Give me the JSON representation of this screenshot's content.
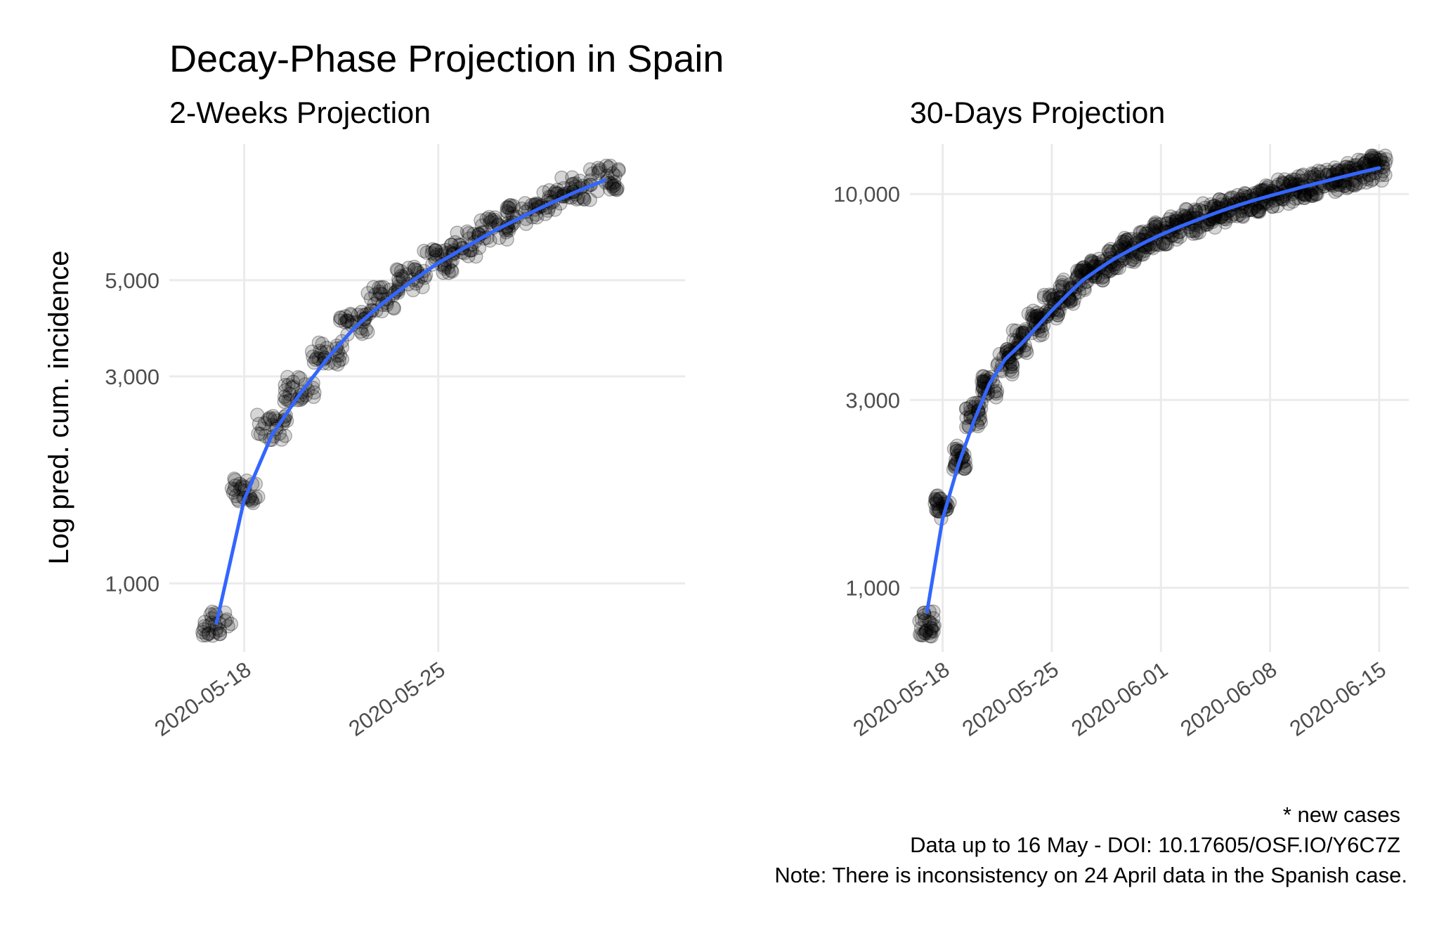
{
  "title": "Decay-Phase Projection in Spain",
  "y_axis_label": "Log pred. cum. incidence",
  "caption": [
    "* new cases",
    "Data up to 16 May - DOI: 10.17605/OSF.IO/Y6C7Z",
    "Note: There is inconsistency on 24 April data in the Spanish case."
  ],
  "colors": {
    "fit_line": "#3366ff",
    "points": "#000000",
    "grid": "#ebebeb"
  },
  "chart_data": [
    {
      "type": "scatter",
      "subtitle": "2-Weeks Projection",
      "x_start": "2020-05-17",
      "xlim_days": [
        -1.7,
        16.9
      ],
      "x_ticks": [
        {
          "label": "2020-05-18",
          "day": 1
        },
        {
          "label": "2020-05-25",
          "day": 8
        }
      ],
      "y_scale": "log",
      "ylim": [
        695,
        10300
      ],
      "y_ticks": [
        {
          "label": "1,000",
          "value": 1000
        },
        {
          "label": "3,000",
          "value": 3000
        },
        {
          "label": "5,000",
          "value": 5000
        }
      ],
      "days": [
        0,
        1,
        2,
        3,
        4,
        5,
        6,
        7,
        8,
        9,
        10,
        11,
        12,
        13,
        14
      ],
      "values": [
        810,
        1630,
        2290,
        2800,
        3380,
        3990,
        4520,
        5030,
        5560,
        6050,
        6560,
        7070,
        7570,
        8090,
        8580
      ],
      "fit": [
        810,
        1560,
        2200,
        2730,
        3300,
        3900,
        4430,
        4950,
        5480,
        5970,
        6490,
        6990,
        7500,
        8010,
        8500
      ]
    },
    {
      "type": "scatter",
      "subtitle": "30-Days Projection",
      "x_start": "2020-05-17",
      "xlim_days": [
        -1.1,
        30.9
      ],
      "x_ticks": [
        {
          "label": "2020-05-18",
          "day": 1
        },
        {
          "label": "2020-05-25",
          "day": 8
        },
        {
          "label": "2020-06-01",
          "day": 15
        },
        {
          "label": "2020-06-08",
          "day": 22
        },
        {
          "label": "2020-06-15",
          "day": 29
        }
      ],
      "y_scale": "log",
      "ylim": [
        687,
        13400
      ],
      "y_ticks": [
        {
          "label": "1,000",
          "value": 1000
        },
        {
          "label": "3,000",
          "value": 3000
        },
        {
          "label": "10,000",
          "value": 10000
        }
      ],
      "days": [
        0,
        1,
        2,
        3,
        4,
        5,
        6,
        7,
        8,
        9,
        10,
        11,
        12,
        13,
        14,
        15,
        16,
        17,
        18,
        19,
        20,
        21,
        22,
        23,
        24,
        25,
        26,
        27,
        28,
        29
      ],
      "values": [
        810,
        1600,
        2150,
        2750,
        3250,
        3750,
        4250,
        4700,
        5200,
        5650,
        6050,
        6450,
        6850,
        7200,
        7550,
        7880,
        8200,
        8500,
        8800,
        9100,
        9380,
        9650,
        9900,
        10150,
        10400,
        10650,
        10900,
        11150,
        11400,
        11650
      ],
      "fit": [
        870,
        1500,
        2050,
        2650,
        3300,
        3800,
        4150,
        4580,
        5060,
        5550,
        6050,
        6450,
        6850,
        7200,
        7550,
        7880,
        8200,
        8500,
        8800,
        9100,
        9380,
        9650,
        9900,
        10150,
        10400,
        10650,
        10900,
        11150,
        11400,
        11650
      ]
    }
  ]
}
